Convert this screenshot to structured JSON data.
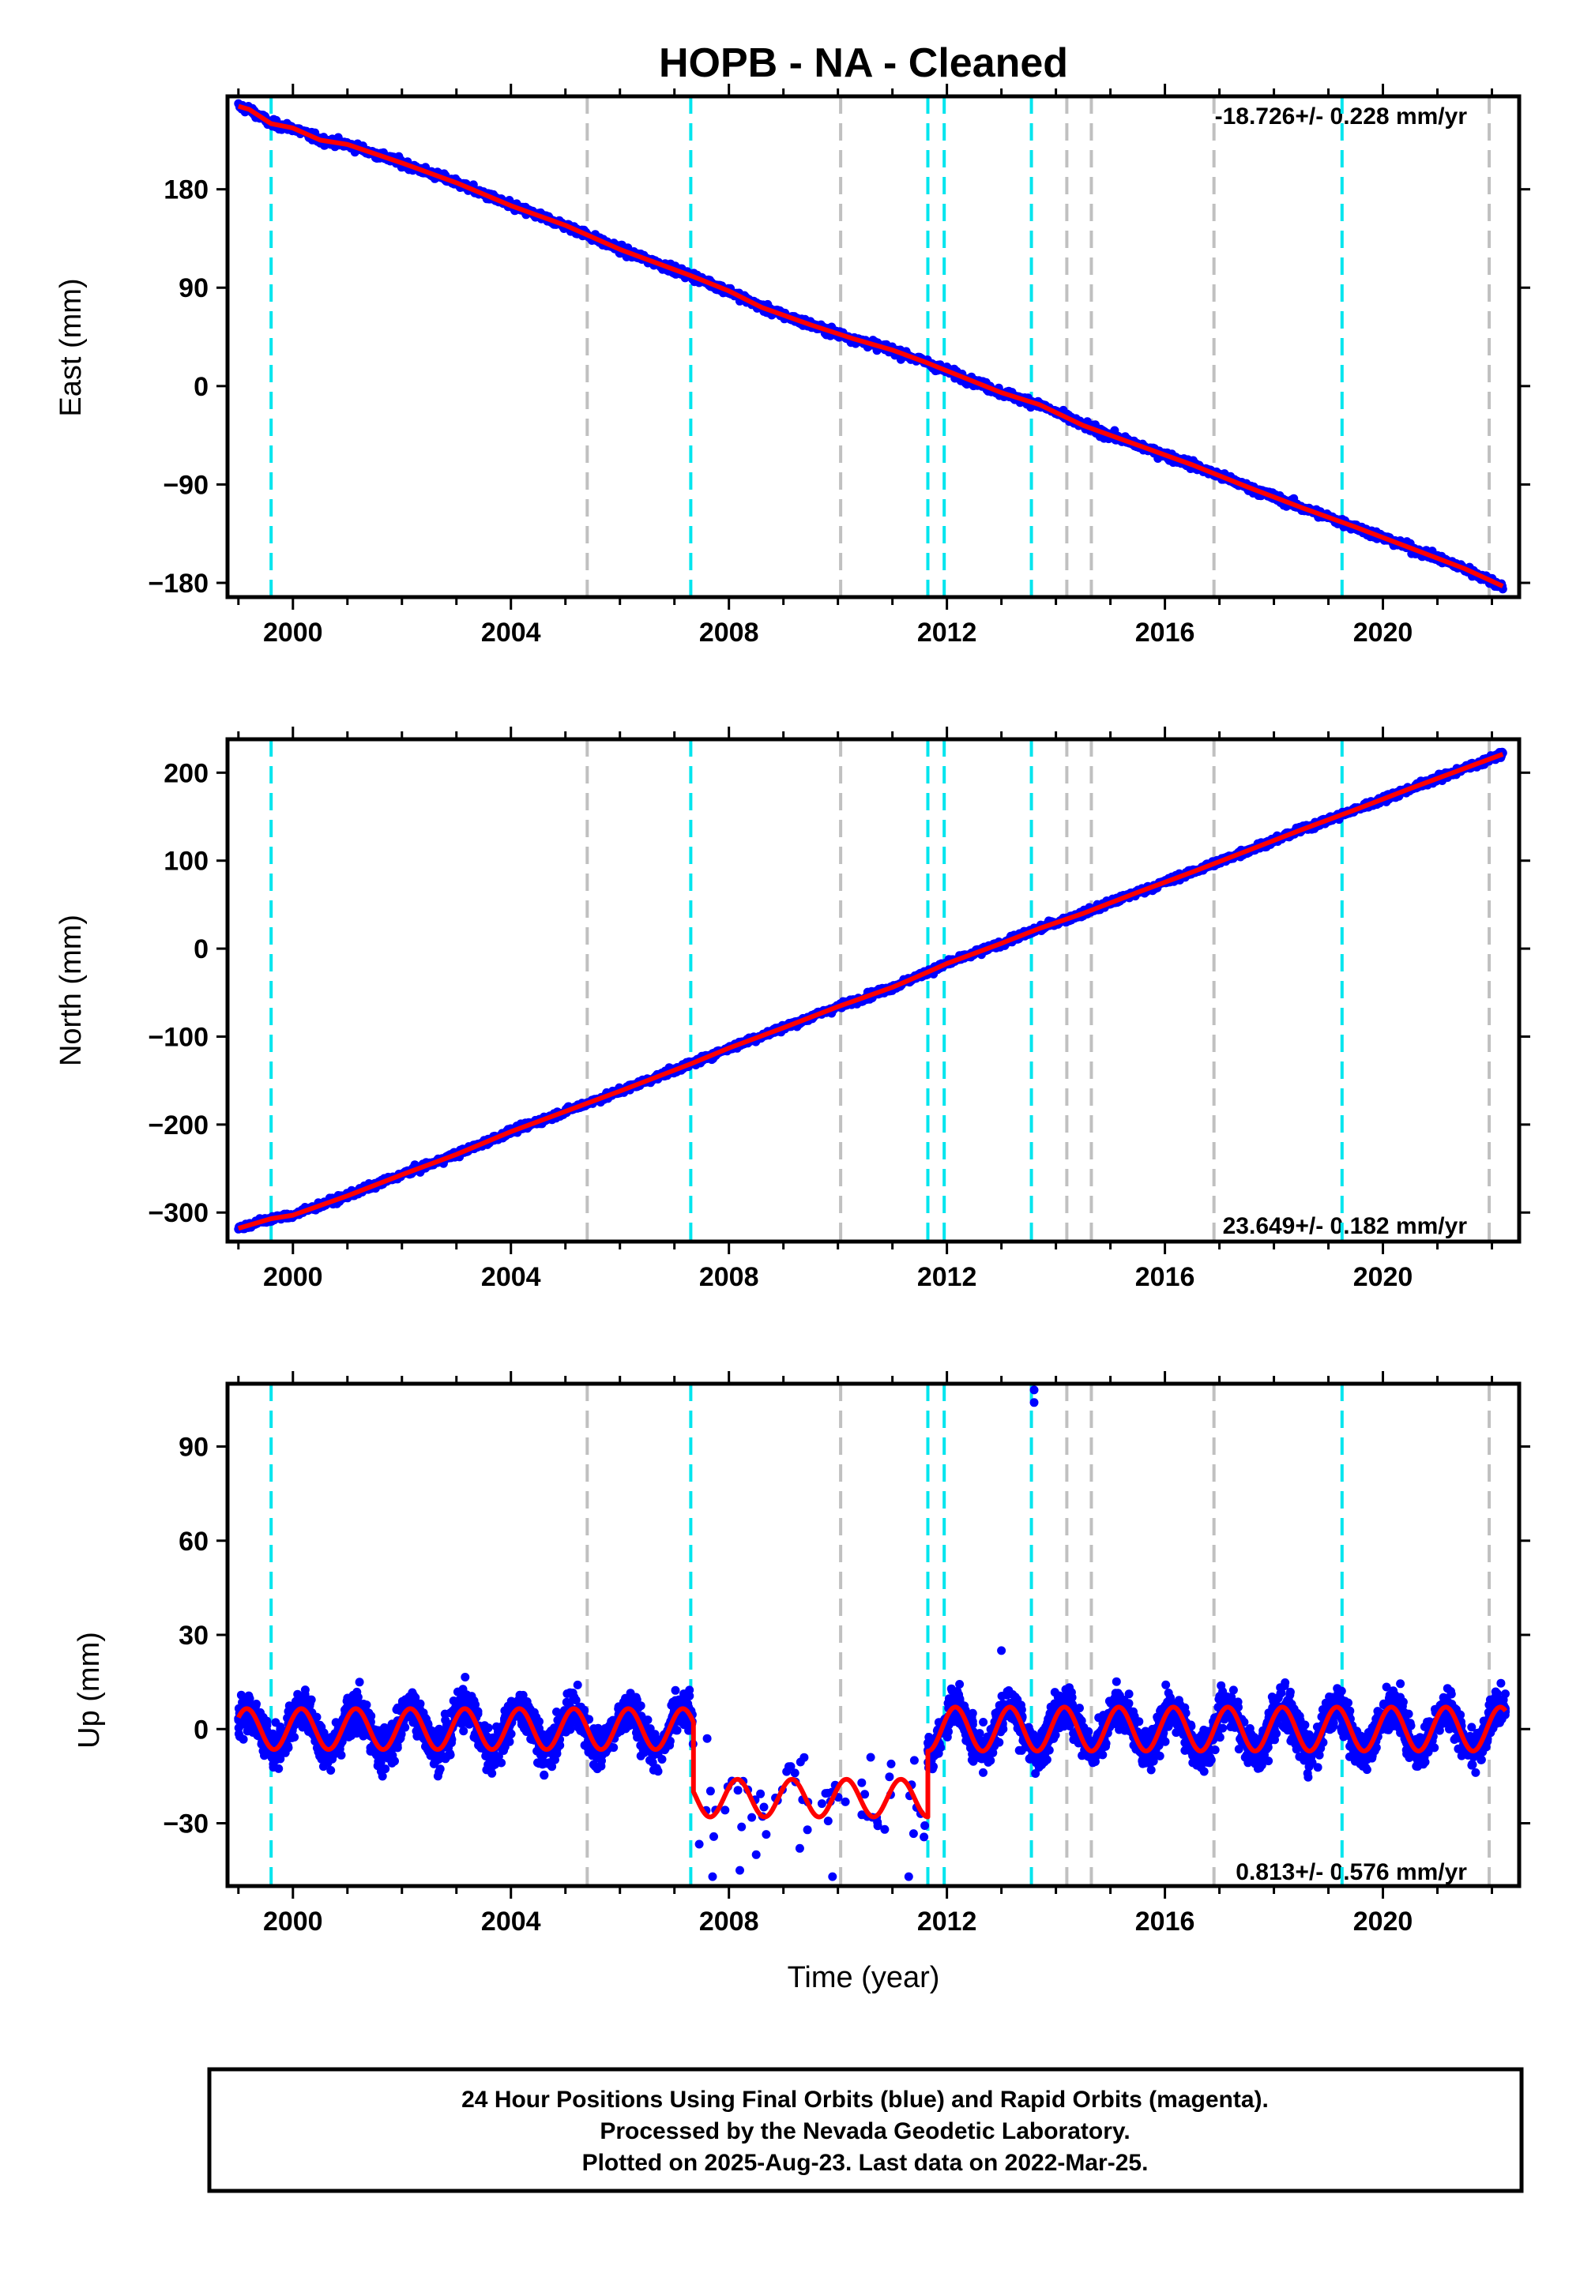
{
  "chart_data": [
    {
      "type": "scatter",
      "title": "HOPB  - NA - Cleaned",
      "ylabel": "East (mm)",
      "xlim": [
        1998.8,
        2022.5
      ],
      "ylim": [
        -193,
        265
      ],
      "xticks": [
        "2000",
        "2004",
        "2008",
        "2012",
        "2016",
        "2020"
      ],
      "yticks": [
        "180",
        "90",
        "0",
        "−90",
        "−180"
      ],
      "rate_label": "-18.726+/- 0.228 mm/yr",
      "rate_position": "top-right",
      "series": [
        {
          "points": [
            [
              1999.0,
              256
            ],
            [
              1999.2,
              253
            ],
            [
              1999.6,
              240
            ],
            [
              2000.0,
              236
            ],
            [
              2000.5,
              225
            ],
            [
              2001.0,
              221
            ],
            [
              2002.0,
              204
            ],
            [
              2003.0,
              186
            ],
            [
              2004.0,
              165
            ],
            [
              2005.0,
              147
            ],
            [
              2006.0,
              125
            ],
            [
              2007.3,
              101
            ],
            [
              2008.0,
              87
            ],
            [
              2008.6,
              72
            ],
            [
              2009.5,
              56
            ],
            [
              2010.3,
              43
            ],
            [
              2011.0,
              33
            ],
            [
              2011.6,
              22
            ],
            [
              2012.0,
              14
            ],
            [
              2013.0,
              -6
            ],
            [
              2013.7,
              -17
            ],
            [
              2014.5,
              -36
            ],
            [
              2015.5,
              -54
            ],
            [
              2016.5,
              -72
            ],
            [
              2017.5,
              -92
            ],
            [
              2018.5,
              -111
            ],
            [
              2019.5,
              -129
            ],
            [
              2020.5,
              -148
            ],
            [
              2021.5,
              -167
            ],
            [
              2022.2,
              -183
            ]
          ]
        }
      ]
    },
    {
      "type": "scatter",
      "ylabel": "North (mm)",
      "xlim": [
        1998.8,
        2022.5
      ],
      "ylim": [
        -333,
        238
      ],
      "xticks": [
        "2000",
        "2004",
        "2008",
        "2012",
        "2016",
        "2020"
      ],
      "yticks": [
        "200",
        "100",
        "0",
        "−100",
        "−200",
        "−300"
      ],
      "rate_label": "23.649+/- 0.182 mm/yr",
      "rate_position": "bottom-right",
      "series": [
        {
          "points": [
            [
              1999.0,
              -318
            ],
            [
              1999.6,
              -307
            ],
            [
              2000.0,
              -303
            ],
            [
              2001.0,
              -281
            ],
            [
              2002.0,
              -257
            ],
            [
              2003.0,
              -234
            ],
            [
              2004.0,
              -208
            ],
            [
              2005.0,
              -185
            ],
            [
              2006.0,
              -162
            ],
            [
              2007.3,
              -131
            ],
            [
              2008.0,
              -113
            ],
            [
              2009.0,
              -90
            ],
            [
              2010.0,
              -66
            ],
            [
              2011.0,
              -44
            ],
            [
              2011.6,
              -28
            ],
            [
              2012.0,
              -17
            ],
            [
              2013.0,
              6
            ],
            [
              2013.7,
              23
            ],
            [
              2014.5,
              40
            ],
            [
              2015.5,
              64
            ],
            [
              2016.5,
              87
            ],
            [
              2017.5,
              111
            ],
            [
              2018.5,
              135
            ],
            [
              2019.5,
              158
            ],
            [
              2020.5,
              182
            ],
            [
              2021.5,
              205
            ],
            [
              2022.2,
              221
            ]
          ]
        }
      ]
    },
    {
      "type": "scatter",
      "xlabel": "Time (year)",
      "ylabel": "Up (mm)",
      "xlim": [
        1998.8,
        2022.5
      ],
      "ylim": [
        -50,
        110
      ],
      "xticks": [
        "2000",
        "2004",
        "2008",
        "2012",
        "2016",
        "2020"
      ],
      "yticks": [
        "90",
        "60",
        "30",
        "0",
        "−30"
      ],
      "rate_label": "0.813+/- 0.576 mm/yr",
      "rate_position": "bottom-right",
      "segments": [
        {
          "start": 1999.0,
          "end": 2007.35,
          "offset": 0,
          "amplitude": 6.5
        },
        {
          "start": 2007.35,
          "end": 2011.65,
          "offset": -22,
          "amplitude": 6
        },
        {
          "start": 2011.65,
          "end": 2022.25,
          "offset": 0,
          "amplitude": 7
        }
      ],
      "outliers": [
        [
          2013.6,
          108
        ],
        [
          2013.6,
          104
        ],
        [
          2013.0,
          25
        ],
        [
          2007.7,
          -47
        ],
        [
          2008.2,
          -45
        ],
        [
          2009.9,
          -47
        ],
        [
          2011.3,
          -47
        ],
        [
          2010.6,
          -9
        ],
        [
          2008.5,
          -40
        ],
        [
          2009.3,
          -38
        ],
        [
          2007.6,
          -3
        ]
      ]
    }
  ],
  "event_lines": {
    "cyan": [
      1999.6,
      2007.3,
      2011.65,
      2011.95,
      2013.55,
      2019.25
    ],
    "gray": [
      2005.4,
      2010.05,
      2014.2,
      2014.65,
      2016.9,
      2021.95
    ]
  },
  "colors": {
    "data": "#0000ff",
    "model": "#ff0000",
    "cyan_line": "#00e5ee",
    "gray_line": "#c0c0c0"
  },
  "footer": {
    "line1": "24 Hour Positions Using Final Orbits (blue) and Rapid Orbits (magenta).",
    "line2": "Processed by the Nevada Geodetic Laboratory.",
    "line3": "Plotted on 2025-Aug-23. Last data on 2022-Mar-25."
  }
}
